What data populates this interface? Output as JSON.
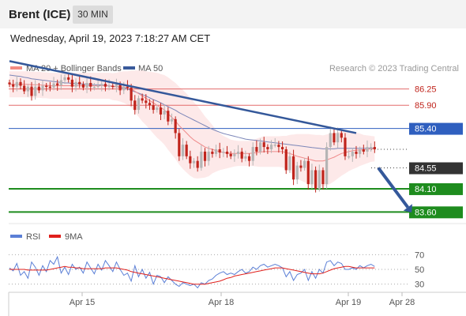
{
  "header": {
    "symbol": "Brent (ICE)",
    "timeframe": "30 MIN"
  },
  "datetime": "Wednesday, April 19, 2023 7:18:27 AM CET",
  "legend": {
    "bollinger": {
      "label": "MA 20 + Bollinger Bands",
      "color": "#f28b82"
    },
    "ma50": {
      "label": "MA 50",
      "color": "#3a5a9b"
    },
    "rsi": {
      "label": "RSI",
      "color": "#5b7fd6"
    },
    "rsi_ma": {
      "label": "9MA",
      "color": "#e0201c"
    }
  },
  "credit": "Research © 2023 Trading Central",
  "colors": {
    "up": "#b5b5b5",
    "down": "#c0241c",
    "resistance": "#e36b6b",
    "pivot": "#2f5fbf",
    "support": "#1e8c1e",
    "current": "#333333",
    "trend": "#34589a"
  },
  "chart_data": [
    {
      "type": "candlestick",
      "ylim": [
        83.35,
        86.55
      ],
      "x_ticks": [
        "Apr 15",
        "Apr 18",
        "Apr 19",
        "Apr 28"
      ],
      "levels": [
        {
          "value": 86.25,
          "label": "86.25",
          "kind": "resistance"
        },
        {
          "value": 85.9,
          "label": "85.90",
          "kind": "resistance"
        },
        {
          "value": 85.4,
          "label": "85.40",
          "kind": "pivot"
        },
        {
          "value": 84.55,
          "label": "84.55",
          "kind": "current"
        },
        {
          "value": 84.1,
          "label": "84.10",
          "kind": "support"
        },
        {
          "value": 83.6,
          "label": "83.60",
          "kind": "support"
        }
      ],
      "trendline": [
        {
          "bar": 0,
          "price": 86.85
        },
        {
          "bar": 94,
          "price": 85.3
        }
      ],
      "projection": [
        {
          "bar": 100,
          "price": 84.55
        },
        {
          "bar": 108,
          "price": 83.7
        }
      ],
      "bars": 100,
      "closes": [
        86.35,
        86.3,
        86.4,
        86.32,
        86.2,
        86.3,
        86.1,
        86.3,
        86.22,
        86.32,
        86.3,
        86.28,
        86.37,
        86.33,
        86.44,
        86.5,
        86.45,
        86.3,
        86.4,
        86.35,
        86.28,
        86.38,
        86.3,
        86.3,
        86.32,
        86.36,
        86.3,
        86.32,
        86.3,
        86.35,
        86.22,
        86.3,
        86.28,
        86.0,
        85.8,
        86.05,
        86.0,
        85.95,
        85.9,
        85.8,
        85.85,
        85.7,
        85.78,
        85.55,
        85.6,
        85.3,
        84.8,
        85.05,
        84.8,
        84.65,
        84.7,
        84.55,
        84.9,
        84.7,
        84.9,
        84.85,
        84.95,
        84.88,
        84.9,
        84.85,
        84.8,
        84.85,
        84.9,
        84.75,
        84.8,
        84.7,
        85.0,
        84.9,
        85.1,
        85.0,
        84.95,
        85.05,
        85.05,
        85.0,
        84.95,
        84.5,
        84.8,
        84.3,
        84.6,
        84.55,
        84.7,
        84.2,
        84.5,
        84.1,
        84.5,
        84.2,
        85.0,
        85.3,
        85.1,
        85.3,
        85.2,
        84.8,
        84.8,
        84.9,
        84.85,
        84.95,
        84.9,
        85.0,
        85.0,
        84.95
      ],
      "ma20": [
        86.35,
        86.35,
        86.35,
        86.35,
        86.35,
        86.35,
        86.34,
        86.34,
        86.34,
        86.33,
        86.33,
        86.32,
        86.32,
        86.32,
        86.32,
        86.32,
        86.32,
        86.32,
        86.32,
        86.32,
        86.32,
        86.32,
        86.32,
        86.32,
        86.32,
        86.32,
        86.32,
        86.32,
        86.3,
        86.3,
        86.3,
        86.29,
        86.27,
        86.25,
        86.2,
        86.15,
        86.1,
        86.05,
        86.0,
        85.95,
        85.9,
        85.85,
        85.8,
        85.72,
        85.64,
        85.56,
        85.46,
        85.38,
        85.3,
        85.22,
        85.15,
        85.1,
        85.05,
        85.0,
        84.97,
        84.95,
        84.92,
        84.9,
        84.88,
        84.87,
        84.86,
        84.86,
        84.86,
        84.86,
        84.86,
        84.86,
        84.87,
        84.88,
        84.89,
        84.9,
        84.9,
        84.9,
        84.9,
        84.9,
        84.9,
        84.88,
        84.86,
        84.83,
        84.8,
        84.78,
        84.76,
        84.74,
        84.72,
        84.7,
        84.7,
        84.7,
        84.72,
        84.75,
        84.78,
        84.82,
        84.86,
        84.88,
        84.9,
        84.92,
        84.93,
        84.94,
        84.94,
        84.95,
        84.96,
        84.96
      ],
      "bb_width": [
        0.28,
        0.28,
        0.28,
        0.28,
        0.28,
        0.28,
        0.28,
        0.28,
        0.28,
        0.28,
        0.28,
        0.28,
        0.28,
        0.28,
        0.28,
        0.28,
        0.28,
        0.28,
        0.28,
        0.28,
        0.28,
        0.28,
        0.28,
        0.28,
        0.28,
        0.28,
        0.28,
        0.28,
        0.29,
        0.3,
        0.32,
        0.34,
        0.36,
        0.4,
        0.45,
        0.5,
        0.55,
        0.58,
        0.62,
        0.66,
        0.7,
        0.72,
        0.75,
        0.78,
        0.8,
        0.82,
        0.84,
        0.85,
        0.85,
        0.84,
        0.82,
        0.78,
        0.72,
        0.66,
        0.6,
        0.52,
        0.45,
        0.4,
        0.36,
        0.33,
        0.3,
        0.28,
        0.27,
        0.27,
        0.27,
        0.27,
        0.28,
        0.3,
        0.32,
        0.33,
        0.33,
        0.33,
        0.33,
        0.33,
        0.34,
        0.36,
        0.4,
        0.44,
        0.48,
        0.5,
        0.52,
        0.54,
        0.55,
        0.56,
        0.56,
        0.55,
        0.55,
        0.54,
        0.52,
        0.5,
        0.48,
        0.45,
        0.42,
        0.4,
        0.38,
        0.35,
        0.32,
        0.3,
        0.28,
        0.27
      ],
      "ma50": [
        86.55,
        86.54,
        86.53,
        86.52,
        86.5,
        86.49,
        86.47,
        86.46,
        86.45,
        86.44,
        86.43,
        86.42,
        86.41,
        86.4,
        86.39,
        86.38,
        86.38,
        86.37,
        86.37,
        86.36,
        86.36,
        86.35,
        86.35,
        86.34,
        86.34,
        86.33,
        86.33,
        86.32,
        86.31,
        86.3,
        86.28,
        86.27,
        86.25,
        86.22,
        86.19,
        86.16,
        86.13,
        86.1,
        86.06,
        86.02,
        85.99,
        85.95,
        85.91,
        85.87,
        85.83,
        85.79,
        85.74,
        85.7,
        85.66,
        85.62,
        85.58,
        85.54,
        85.5,
        85.46,
        85.42,
        85.38,
        85.35,
        85.32,
        85.29,
        85.27,
        85.25,
        85.23,
        85.21,
        85.19,
        85.17,
        85.16,
        85.15,
        85.14,
        85.13,
        85.12,
        85.11,
        85.1,
        85.09,
        85.08,
        85.07,
        85.06,
        85.05,
        85.04,
        85.03,
        85.02,
        85.01,
        85.0,
        84.99,
        84.98,
        84.97,
        84.96,
        84.96,
        84.96,
        84.96,
        84.97,
        84.97,
        84.97,
        84.97,
        84.97,
        84.97,
        84.97,
        84.97,
        84.97,
        84.97,
        84.97
      ]
    },
    {
      "type": "line",
      "title": "",
      "y_ticks": [
        70,
        50,
        30
      ],
      "ylim": [
        20,
        80
      ],
      "series": [
        {
          "name": "RSI",
          "values": [
            52,
            48,
            58,
            42,
            47,
            38,
            60,
            53,
            42,
            55,
            47,
            62,
            57,
            67,
            45,
            53,
            43,
            57,
            50,
            53,
            45,
            60,
            52,
            44,
            57,
            49,
            62,
            55,
            47,
            60,
            50,
            42,
            45,
            34,
            55,
            40,
            50,
            38,
            46,
            30,
            42,
            40,
            32,
            40,
            35,
            30,
            27,
            32,
            30,
            28,
            30,
            25,
            32,
            30,
            35,
            37,
            42,
            45,
            47,
            43,
            45,
            43,
            47,
            50,
            45,
            47,
            53,
            50,
            55,
            57,
            53,
            55,
            57,
            55,
            52,
            40,
            47,
            35,
            43,
            45,
            50,
            35,
            47,
            38,
            50,
            45,
            60,
            62,
            55,
            60,
            58,
            50,
            50,
            52,
            50,
            55,
            52,
            55,
            57,
            54
          ]
        },
        {
          "name": "9MA",
          "values": [
            50,
            50,
            50,
            50,
            50,
            49,
            49,
            49,
            49,
            49,
            49,
            50,
            51,
            52,
            53,
            54,
            53,
            53,
            52,
            52,
            51,
            51,
            51,
            51,
            51,
            51,
            52,
            52,
            52,
            52,
            51,
            50,
            49,
            47,
            46,
            45,
            44,
            43,
            42,
            41,
            40,
            39,
            38,
            37,
            36,
            35,
            34,
            33,
            32,
            31,
            30,
            30,
            30,
            30,
            31,
            32,
            33,
            34,
            36,
            38,
            39,
            41,
            42,
            43,
            44,
            45,
            46,
            47,
            48,
            49,
            50,
            51,
            52,
            52,
            52,
            51,
            50,
            49,
            48,
            47,
            46,
            45,
            44,
            44,
            44,
            45,
            47,
            49,
            51,
            52,
            53,
            54,
            54,
            53,
            52,
            52,
            52,
            52,
            52,
            52
          ]
        }
      ]
    }
  ]
}
